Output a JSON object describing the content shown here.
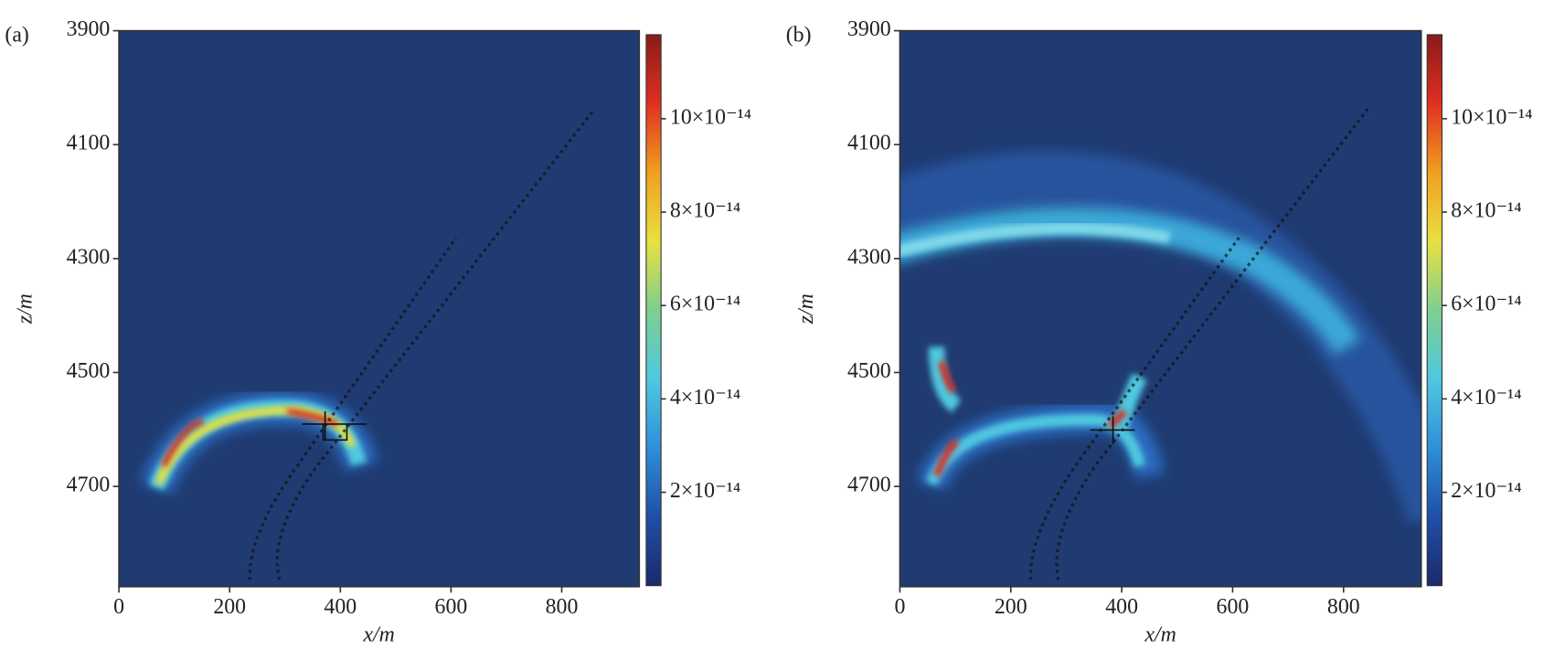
{
  "chart_data": [
    {
      "type": "heatmap",
      "panel_label": "(a)",
      "x_label": "x/m",
      "y_label": "z/m",
      "xlim": [
        0,
        940
      ],
      "xticks": [
        0,
        200,
        400,
        600,
        800
      ],
      "ylim": [
        4876,
        3900
      ],
      "yticks": [
        3900,
        4100,
        4300,
        4500,
        4700
      ],
      "colormap": [
        "#1b2a6b",
        "#1f4fa8",
        "#2f8fd8",
        "#4fc8e0",
        "#7fcf8f",
        "#e8e040",
        "#f0a020",
        "#e03020",
        "#8a1a1a"
      ],
      "colorbar": {
        "lim": [
          0,
          1.18e-13
        ],
        "ticks": [
          {
            "value": 2e-14,
            "label": "2×10⁻¹⁴"
          },
          {
            "value": 4e-14,
            "label": "4×10⁻¹⁴"
          },
          {
            "value": 6e-14,
            "label": "6×10⁻¹⁴"
          },
          {
            "value": 8e-14,
            "label": "8×10⁻¹⁴"
          },
          {
            "value": 1e-13,
            "label": "10×10⁻¹⁴"
          }
        ]
      }
    },
    {
      "type": "heatmap",
      "panel_label": "(b)",
      "x_label": "x/m",
      "y_label": "z/m",
      "xlim": [
        0,
        940
      ],
      "xticks": [
        0,
        200,
        400,
        600,
        800
      ],
      "ylim": [
        4876,
        3900
      ],
      "yticks": [
        3900,
        4100,
        4300,
        4500,
        4700
      ],
      "colormap": [
        "#1b2a6b",
        "#1f4fa8",
        "#2f8fd8",
        "#4fc8e0",
        "#7fcf8f",
        "#e8e040",
        "#f0a020",
        "#e03020",
        "#8a1a1a"
      ],
      "colorbar": {
        "lim": [
          0,
          1.18e-13
        ],
        "ticks": [
          {
            "value": 2e-14,
            "label": "2×10⁻¹⁴"
          },
          {
            "value": 4e-14,
            "label": "4×10⁻¹⁴"
          },
          {
            "value": 6e-14,
            "label": "6×10⁻¹⁴"
          },
          {
            "value": 8e-14,
            "label": "8×10⁻¹⁴"
          },
          {
            "value": 1e-13,
            "label": "10×10⁻¹⁴"
          }
        ]
      }
    }
  ]
}
